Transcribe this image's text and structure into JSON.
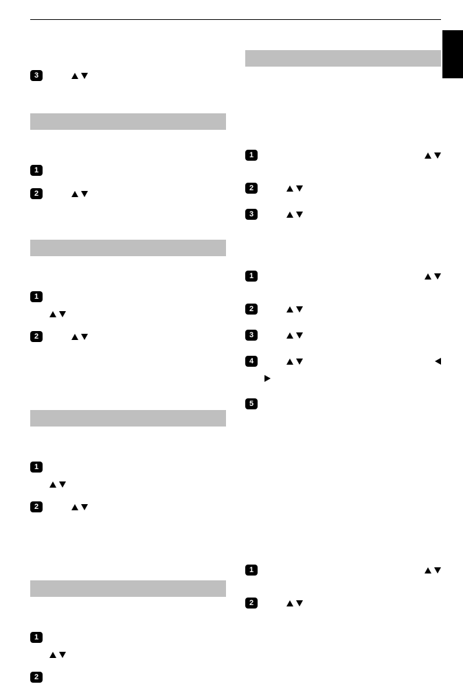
{
  "left_column": {
    "intro_step": {
      "num": "3",
      "icons": [
        "up",
        "down"
      ]
    },
    "sections": [
      {
        "bar": true,
        "steps": [
          {
            "num": "1",
            "icons": []
          },
          {
            "num": "2",
            "icons": [
              "up",
              "down"
            ]
          }
        ]
      },
      {
        "bar": true,
        "steps": [
          {
            "num": "1",
            "icons": [],
            "indent_icons": [
              "up",
              "down"
            ]
          },
          {
            "num": "2",
            "icons": [
              "up",
              "down"
            ],
            "trailing_gap": true
          }
        ]
      },
      {
        "bar": true,
        "steps": [
          {
            "num": "1",
            "icons": [],
            "indent_icons": [
              "up",
              "down"
            ]
          },
          {
            "num": "2",
            "icons": [
              "up",
              "down"
            ],
            "trailing_gap": true
          }
        ]
      },
      {
        "bar": true,
        "steps": [
          {
            "num": "1",
            "icons": [],
            "indent_icons": [
              "up",
              "down"
            ]
          },
          {
            "num": "2",
            "icons": []
          }
        ]
      }
    ]
  },
  "right_column": {
    "sections": [
      {
        "bar": true,
        "lead_gap": true,
        "steps": [
          {
            "num": "1",
            "icons": [
              "up",
              "down"
            ],
            "icons_offset": true
          },
          {
            "num": "2",
            "icons": [
              "up",
              "down"
            ]
          },
          {
            "num": "3",
            "icons": [
              "up",
              "down"
            ]
          }
        ]
      },
      {
        "bar": false,
        "steps": [
          {
            "num": "1",
            "icons": [
              "up",
              "down"
            ],
            "icons_offset": true
          },
          {
            "num": "2",
            "icons": [
              "up",
              "down"
            ]
          },
          {
            "num": "3",
            "icons": [
              "up",
              "down"
            ]
          },
          {
            "num": "4",
            "icons": [
              "up",
              "down"
            ],
            "trailing_icon": "left",
            "indent_icons": [
              "right"
            ]
          },
          {
            "num": "5",
            "icons": [],
            "trailing_gap_large": true
          }
        ]
      },
      {
        "bar": false,
        "steps": [
          {
            "num": "1",
            "icons": [
              "up",
              "down"
            ],
            "icons_offset": true,
            "pre_gap": true
          },
          {
            "num": "2",
            "icons": [
              "up",
              "down"
            ]
          }
        ]
      }
    ]
  }
}
